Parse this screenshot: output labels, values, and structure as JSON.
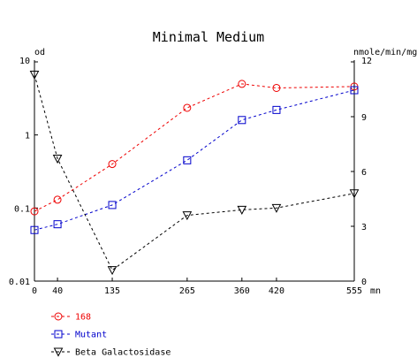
{
  "chart_data": {
    "type": "line",
    "title": "Minimal Medium",
    "x": [
      0,
      40,
      135,
      265,
      360,
      420,
      555
    ],
    "x_tick_labels": [
      "0",
      "40",
      "135",
      "265",
      "360",
      "420",
      "555"
    ],
    "xlabel": "mn",
    "xlim": [
      0,
      555
    ],
    "y_left": {
      "label": "od",
      "scale": "log",
      "lim": [
        0.01,
        10
      ],
      "ticks": [
        0.01,
        0.1,
        1,
        10
      ],
      "tick_labels": [
        "0.01",
        "0.1",
        "1",
        "10"
      ]
    },
    "y_right": {
      "label": "nmole/min/mg",
      "scale": "linear",
      "lim": [
        0,
        12
      ],
      "ticks": [
        0,
        3,
        6,
        9,
        12
      ],
      "tick_labels": [
        "0",
        "3",
        "6",
        "9",
        "12"
      ]
    },
    "grid": false,
    "legend_position": "bottom-left",
    "series": [
      {
        "name": "168",
        "axis": "left",
        "marker": "circle",
        "color": "#ee0000",
        "values": [
          0.09,
          0.13,
          0.4,
          2.35,
          5.0,
          4.4,
          4.6
        ]
      },
      {
        "name": "Mutant",
        "axis": "left",
        "marker": "square",
        "color": "#0000cc",
        "values": [
          0.05,
          0.06,
          0.11,
          0.45,
          1.6,
          2.2,
          4.1
        ]
      },
      {
        "name": "Beta Galactosidase",
        "axis": "right",
        "marker": "triangle-down",
        "color": "#000000",
        "values": [
          11.3,
          6.7,
          0.6,
          3.6,
          3.9,
          4.0,
          4.8
        ]
      }
    ]
  }
}
